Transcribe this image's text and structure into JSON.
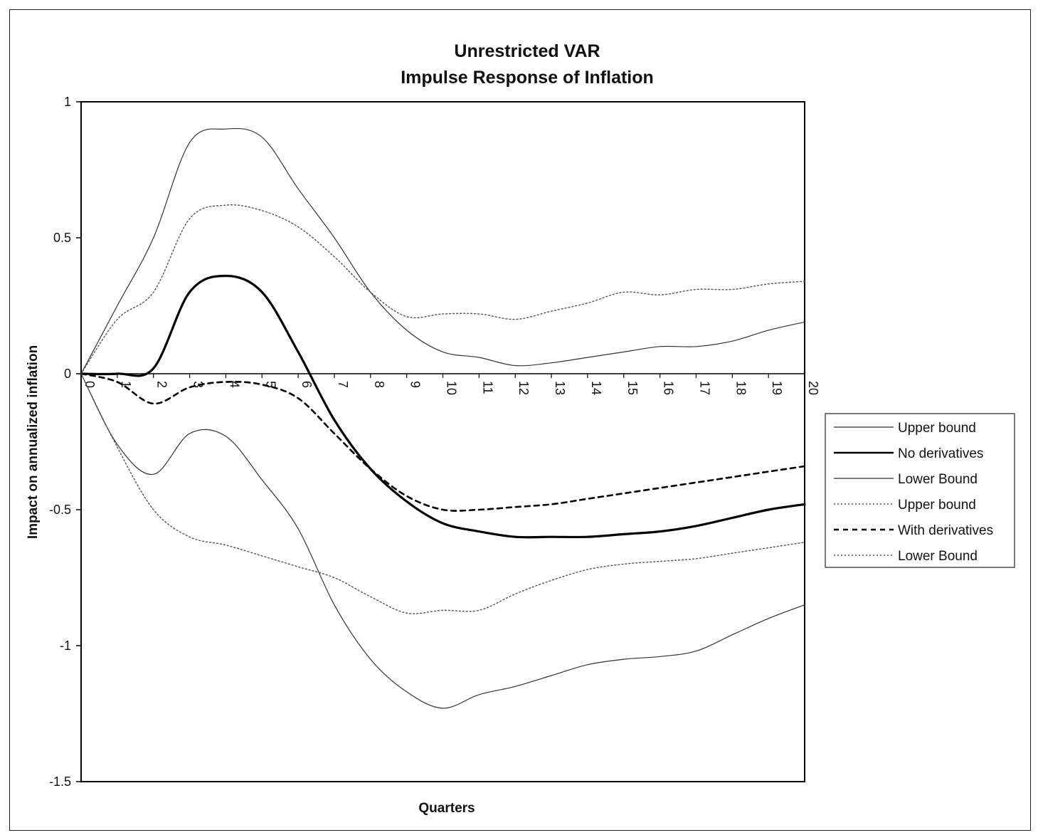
{
  "chart_data": {
    "type": "line",
    "title": "Unrestricted VAR",
    "subtitle": "Impulse Response of Inflation",
    "xlabel": "Quarters",
    "ylabel": "Impact on annualized inflation",
    "xlim": [
      0,
      20
    ],
    "ylim": [
      -1.5,
      1
    ],
    "y_ticks": [
      1,
      0.5,
      0,
      -0.5,
      -1,
      -1.5
    ],
    "y_tick_labels": [
      "1",
      "0.5",
      "0",
      "-0.5",
      "-1",
      "-1.5"
    ],
    "x_tick_labels": [
      "0",
      "1",
      "2",
      "3",
      "4",
      "5",
      "6",
      "7",
      "8",
      "9",
      "10",
      "11",
      "12",
      "13",
      "14",
      "15",
      "16",
      "17",
      "18",
      "19",
      "20"
    ],
    "grid": false,
    "legend_position": "right",
    "x": [
      0,
      1,
      2,
      3,
      4,
      5,
      6,
      7,
      8,
      9,
      10,
      11,
      12,
      13,
      14,
      15,
      16,
      17,
      18,
      19,
      20
    ],
    "series": [
      {
        "name": "Upper bound",
        "color": "#333333",
        "style": "thin-solid",
        "values": [
          0,
          0.25,
          0.5,
          0.85,
          0.9,
          0.87,
          0.68,
          0.5,
          0.3,
          0.16,
          0.08,
          0.06,
          0.03,
          0.04,
          0.06,
          0.08,
          0.1,
          0.1,
          0.12,
          0.16,
          0.19
        ]
      },
      {
        "name": "No derivatives",
        "color": "#000000",
        "style": "thick-solid",
        "values": [
          0,
          0,
          0.02,
          0.3,
          0.36,
          0.3,
          0.08,
          -0.17,
          -0.35,
          -0.47,
          -0.55,
          -0.58,
          -0.6,
          -0.6,
          -0.6,
          -0.59,
          -0.58,
          -0.56,
          -0.53,
          -0.5,
          -0.48
        ]
      },
      {
        "name": "Lower Bound",
        "color": "#333333",
        "style": "thin-solid",
        "values": [
          0,
          -0.26,
          -0.37,
          -0.22,
          -0.23,
          -0.39,
          -0.57,
          -0.85,
          -1.05,
          -1.17,
          -1.23,
          -1.18,
          -1.15,
          -1.11,
          -1.07,
          -1.05,
          -1.04,
          -1.02,
          -0.96,
          -0.9,
          -0.85
        ]
      },
      {
        "name": "Upper bound",
        "color": "#555555",
        "style": "dotted",
        "values": [
          0,
          0.2,
          0.3,
          0.57,
          0.62,
          0.6,
          0.54,
          0.43,
          0.3,
          0.21,
          0.22,
          0.22,
          0.2,
          0.23,
          0.26,
          0.3,
          0.29,
          0.31,
          0.31,
          0.33,
          0.34
        ]
      },
      {
        "name": "With derivatives",
        "color": "#000000",
        "style": "dashed",
        "values": [
          0,
          -0.03,
          -0.11,
          -0.05,
          -0.03,
          -0.04,
          -0.09,
          -0.22,
          -0.35,
          -0.45,
          -0.5,
          -0.5,
          -0.49,
          -0.48,
          -0.46,
          -0.44,
          -0.42,
          -0.4,
          -0.38,
          -0.36,
          -0.34
        ]
      },
      {
        "name": "Lower Bound",
        "color": "#555555",
        "style": "dotted",
        "values": [
          0,
          -0.27,
          -0.5,
          -0.6,
          -0.63,
          -0.67,
          -0.71,
          -0.75,
          -0.82,
          -0.88,
          -0.87,
          -0.87,
          -0.81,
          -0.76,
          -0.72,
          -0.7,
          -0.69,
          -0.68,
          -0.66,
          -0.64,
          -0.62
        ]
      }
    ]
  }
}
